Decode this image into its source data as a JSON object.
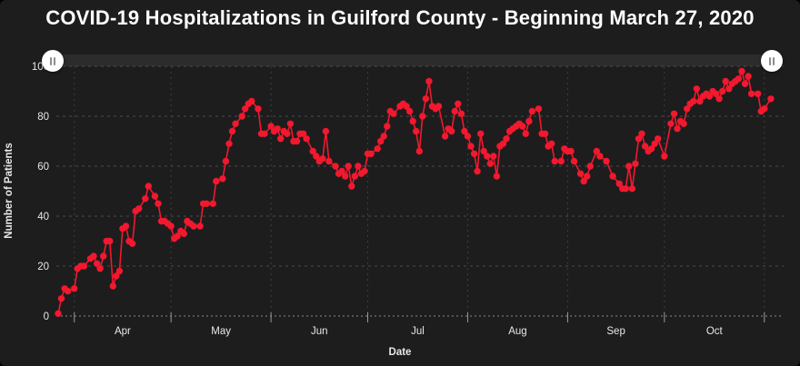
{
  "title": "COVID-19 Hospitalizations in Guilford County - Beginning March 27, 2020",
  "colors": {
    "series": "#f2182e",
    "panel_bg": "#1d1d1e",
    "grid": "#4a4a4a",
    "baseline_grid": "#8a8a8a",
    "axis_text": "#e8e8e8",
    "slider_track": "#2c2c2d",
    "handle": "#ffffff"
  },
  "icons": {
    "left_handle": "drag-grip-icon",
    "right_handle": "drag-grip-icon"
  },
  "chart_data": {
    "type": "line",
    "title": "COVID-19 Hospitalizations in Guilford County - Beginning March 27, 2020",
    "xlabel": "Date",
    "ylabel": "Number of Patients",
    "ylim": [
      0,
      100
    ],
    "yticks": [
      0,
      20,
      40,
      60,
      80,
      100
    ],
    "grid": true,
    "legend": false,
    "marker": "circle",
    "x_unit": "days since start date",
    "start_date": "2020-03-27",
    "months": [
      {
        "label": "Apr",
        "start_day": 5
      },
      {
        "label": "May",
        "start_day": 35
      },
      {
        "label": "Jun",
        "start_day": 66
      },
      {
        "label": "Jul",
        "start_day": 96
      },
      {
        "label": "Aug",
        "start_day": 127
      },
      {
        "label": "Sep",
        "start_day": 158
      },
      {
        "label": "Oct",
        "start_day": 188
      }
    ],
    "axis_end_day": 219,
    "series": [
      {
        "name": "Number of Patients",
        "color": "#f2182e",
        "points": [
          [
            0,
            1
          ],
          [
            1,
            7
          ],
          [
            2,
            11
          ],
          [
            3,
            10
          ],
          [
            5,
            11
          ],
          [
            6,
            19
          ],
          [
            7,
            20
          ],
          [
            8,
            20
          ],
          [
            10,
            23
          ],
          [
            11,
            24
          ],
          [
            12,
            21
          ],
          [
            13,
            19
          ],
          [
            14,
            24
          ],
          [
            15,
            30
          ],
          [
            16,
            30
          ],
          [
            17,
            12
          ],
          [
            18,
            16
          ],
          [
            19,
            18
          ],
          [
            20,
            35
          ],
          [
            21,
            36
          ],
          [
            22,
            30
          ],
          [
            23,
            29
          ],
          [
            24,
            42
          ],
          [
            25,
            43
          ],
          [
            27,
            47
          ],
          [
            28,
            52
          ],
          [
            30,
            48
          ],
          [
            31,
            45
          ],
          [
            32,
            38
          ],
          [
            33,
            38
          ],
          [
            34,
            37
          ],
          [
            35,
            36
          ],
          [
            36,
            31
          ],
          [
            37,
            32
          ],
          [
            38,
            34
          ],
          [
            39,
            33
          ],
          [
            40,
            38
          ],
          [
            41,
            37
          ],
          [
            42,
            36
          ],
          [
            44,
            36
          ],
          [
            45,
            45
          ],
          [
            46,
            45
          ],
          [
            48,
            45
          ],
          [
            49,
            54
          ],
          [
            51,
            55
          ],
          [
            52,
            62
          ],
          [
            53,
            69
          ],
          [
            54,
            74
          ],
          [
            55,
            77
          ],
          [
            57,
            80
          ],
          [
            58,
            83
          ],
          [
            59,
            85
          ],
          [
            60,
            86
          ],
          [
            62,
            83
          ],
          [
            63,
            73
          ],
          [
            64,
            73
          ],
          [
            66,
            76
          ],
          [
            67,
            74
          ],
          [
            68,
            75
          ],
          [
            69,
            71
          ],
          [
            70,
            74
          ],
          [
            71,
            73
          ],
          [
            72,
            77
          ],
          [
            73,
            70
          ],
          [
            74,
            70
          ],
          [
            75,
            73
          ],
          [
            76,
            73
          ],
          [
            77,
            71
          ],
          [
            79,
            66
          ],
          [
            80,
            64
          ],
          [
            81,
            62
          ],
          [
            82,
            63
          ],
          [
            83,
            74
          ],
          [
            84,
            62
          ],
          [
            86,
            60
          ],
          [
            87,
            57
          ],
          [
            88,
            58
          ],
          [
            89,
            56
          ],
          [
            90,
            60
          ],
          [
            91,
            52
          ],
          [
            92,
            56
          ],
          [
            93,
            60
          ],
          [
            94,
            57
          ],
          [
            95,
            58
          ],
          [
            96,
            65
          ],
          [
            97,
            65
          ],
          [
            99,
            67
          ],
          [
            100,
            70
          ],
          [
            101,
            72
          ],
          [
            102,
            76
          ],
          [
            103,
            82
          ],
          [
            104,
            81
          ],
          [
            106,
            84
          ],
          [
            107,
            85
          ],
          [
            108,
            84
          ],
          [
            109,
            82
          ],
          [
            110,
            78
          ],
          [
            111,
            74
          ],
          [
            112,
            66
          ],
          [
            113,
            80
          ],
          [
            114,
            87
          ],
          [
            115,
            94
          ],
          [
            116,
            84
          ],
          [
            117,
            83
          ],
          [
            118,
            84
          ],
          [
            120,
            72
          ],
          [
            121,
            75
          ],
          [
            122,
            74
          ],
          [
            123,
            82
          ],
          [
            124,
            85
          ],
          [
            125,
            81
          ],
          [
            126,
            74
          ],
          [
            127,
            72
          ],
          [
            128,
            68
          ],
          [
            129,
            65
          ],
          [
            130,
            58
          ],
          [
            131,
            73
          ],
          [
            132,
            66
          ],
          [
            133,
            64
          ],
          [
            134,
            61
          ],
          [
            135,
            64
          ],
          [
            136,
            56
          ],
          [
            137,
            68
          ],
          [
            138,
            69
          ],
          [
            139,
            71
          ],
          [
            140,
            74
          ],
          [
            141,
            75
          ],
          [
            142,
            76
          ],
          [
            143,
            77
          ],
          [
            144,
            76
          ],
          [
            145,
            73
          ],
          [
            146,
            78
          ],
          [
            147,
            82
          ],
          [
            149,
            83
          ],
          [
            150,
            73
          ],
          [
            151,
            73
          ],
          [
            152,
            68
          ],
          [
            153,
            69
          ],
          [
            154,
            62
          ],
          [
            156,
            62
          ],
          [
            157,
            67
          ],
          [
            158,
            66
          ],
          [
            159,
            66
          ],
          [
            160,
            62
          ],
          [
            162,
            57
          ],
          [
            163,
            54
          ],
          [
            164,
            56
          ],
          [
            165,
            60
          ],
          [
            167,
            66
          ],
          [
            168,
            64
          ],
          [
            170,
            62
          ],
          [
            172,
            56
          ],
          [
            174,
            53
          ],
          [
            175,
            51
          ],
          [
            176,
            51
          ],
          [
            177,
            60
          ],
          [
            178,
            51
          ],
          [
            179,
            61
          ],
          [
            180,
            71
          ],
          [
            181,
            73
          ],
          [
            182,
            68
          ],
          [
            183,
            66
          ],
          [
            184,
            67
          ],
          [
            185,
            69
          ],
          [
            186,
            71
          ],
          [
            188,
            64
          ],
          [
            190,
            77
          ],
          [
            191,
            81
          ],
          [
            192,
            75
          ],
          [
            193,
            78
          ],
          [
            194,
            77
          ],
          [
            195,
            83
          ],
          [
            196,
            85
          ],
          [
            197,
            86
          ],
          [
            198,
            91
          ],
          [
            199,
            86
          ],
          [
            200,
            88
          ],
          [
            201,
            89
          ],
          [
            202,
            88
          ],
          [
            203,
            90
          ],
          [
            204,
            89
          ],
          [
            205,
            87
          ],
          [
            206,
            90
          ],
          [
            207,
            94
          ],
          [
            208,
            91
          ],
          [
            209,
            93
          ],
          [
            210,
            94
          ],
          [
            211,
            95
          ],
          [
            212,
            98
          ],
          [
            213,
            93
          ],
          [
            214,
            96
          ],
          [
            215,
            89
          ],
          [
            217,
            89
          ],
          [
            218,
            82
          ],
          [
            219,
            83
          ],
          [
            221,
            87
          ]
        ]
      }
    ]
  }
}
